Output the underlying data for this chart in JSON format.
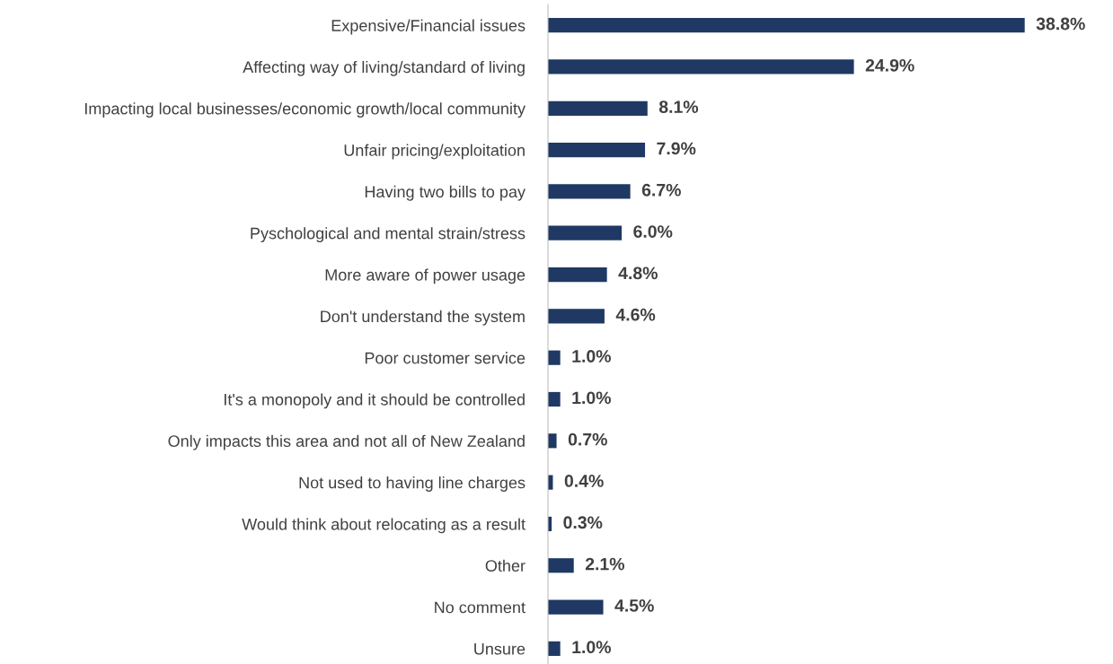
{
  "chart_data": {
    "type": "bar",
    "orientation": "horizontal",
    "color": "#1f3864",
    "categories": [
      "Expensive/Financial issues",
      "Affecting way of living/standard of living",
      "Impacting local businesses/economic growth/local community",
      "Unfair pricing/exploitation",
      "Having two bills to pay",
      "Pyschological and mental strain/stress",
      "More aware of power usage",
      "Don't understand the system",
      "Poor customer service",
      "It's a monopoly and it should be controlled",
      "Only impacts this area and not all of New Zealand",
      "Not used to having line charges",
      "Would think about relocating as a result",
      "Other",
      "No comment",
      "Unsure"
    ],
    "values": [
      38.8,
      24.9,
      8.1,
      7.9,
      6.7,
      6.0,
      4.8,
      4.6,
      1.0,
      1.0,
      0.7,
      0.4,
      0.3,
      2.1,
      4.5,
      1.0
    ],
    "value_labels": [
      "38.8%",
      "24.9%",
      "8.1%",
      "7.9%",
      "6.7%",
      "6.0%",
      "4.8%",
      "4.6%",
      "1.0%",
      "1.0%",
      "0.7%",
      "0.4%",
      "0.3%",
      "2.1%",
      "4.5%",
      "1.0%"
    ],
    "grid": false,
    "legend": false
  }
}
